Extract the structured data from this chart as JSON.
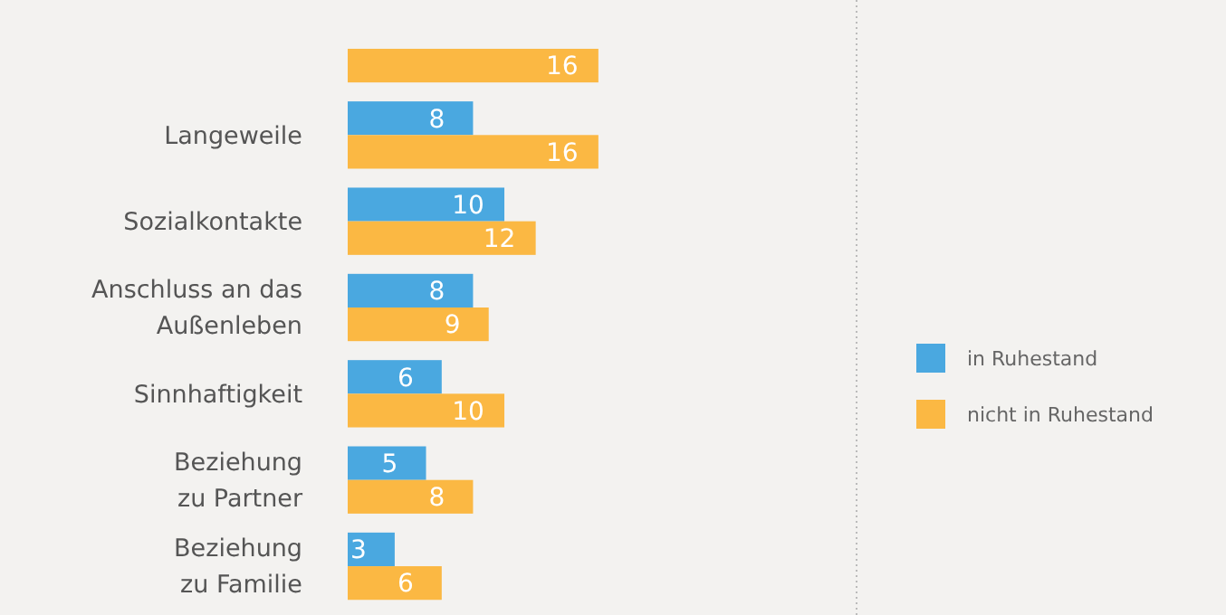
{
  "chart_data": {
    "type": "bar",
    "orientation": "horizontal",
    "categories": [
      null,
      "Langeweile",
      "Sozialkontakte",
      "Anschluss an das\nAußenleben",
      "Sinnhaftigkeit",
      "Beziehung\nzu Partner",
      "Beziehung\nzu Familie"
    ],
    "series": [
      {
        "name": "in Ruhestand",
        "color": "#4aa8e0",
        "values": [
          null,
          8,
          10,
          8,
          6,
          5,
          3
        ]
      },
      {
        "name": "nicht in Ruhestand",
        "color": "#fbb843",
        "values": [
          16,
          16,
          12,
          9,
          10,
          8,
          6
        ]
      }
    ],
    "data_labels": true,
    "legend": "right"
  }
}
